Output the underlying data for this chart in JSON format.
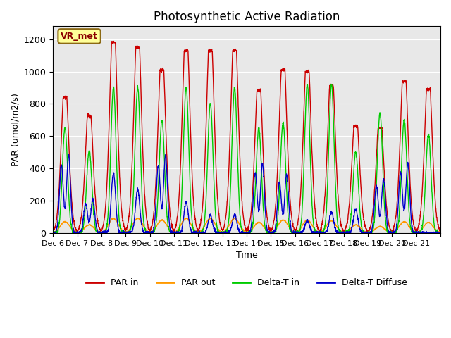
{
  "title": "Photosynthetic Active Radiation",
  "ylabel": "PAR (umol/m2/s)",
  "xlabel": "Time",
  "annotation": "VR_met",
  "ylim": [
    0,
    1280
  ],
  "yticks": [
    0,
    200,
    400,
    600,
    800,
    1000,
    1200
  ],
  "colors": {
    "PAR_in": "#cc0000",
    "PAR_out": "#ff9900",
    "Delta_T_in": "#00cc00",
    "Delta_T_Diffuse": "#0000cc"
  },
  "legend_labels": [
    "PAR in",
    "PAR out",
    "Delta-T in",
    "Delta-T Diffuse"
  ],
  "background_color": "#e8e8e8",
  "n_days": 16,
  "xtick_labels": [
    "Dec 6",
    "Dec 7",
    "Dec 8",
    "Dec 9",
    "Dec 10",
    "Dec 11",
    "Dec 12",
    "Dec 13",
    "Dec 14",
    "Dec 15",
    "Dec 16",
    "Dec 17",
    "Dec 18",
    "Dec 19",
    "Dec 20",
    "Dec 21",
    ""
  ],
  "linewidth": 1.0
}
